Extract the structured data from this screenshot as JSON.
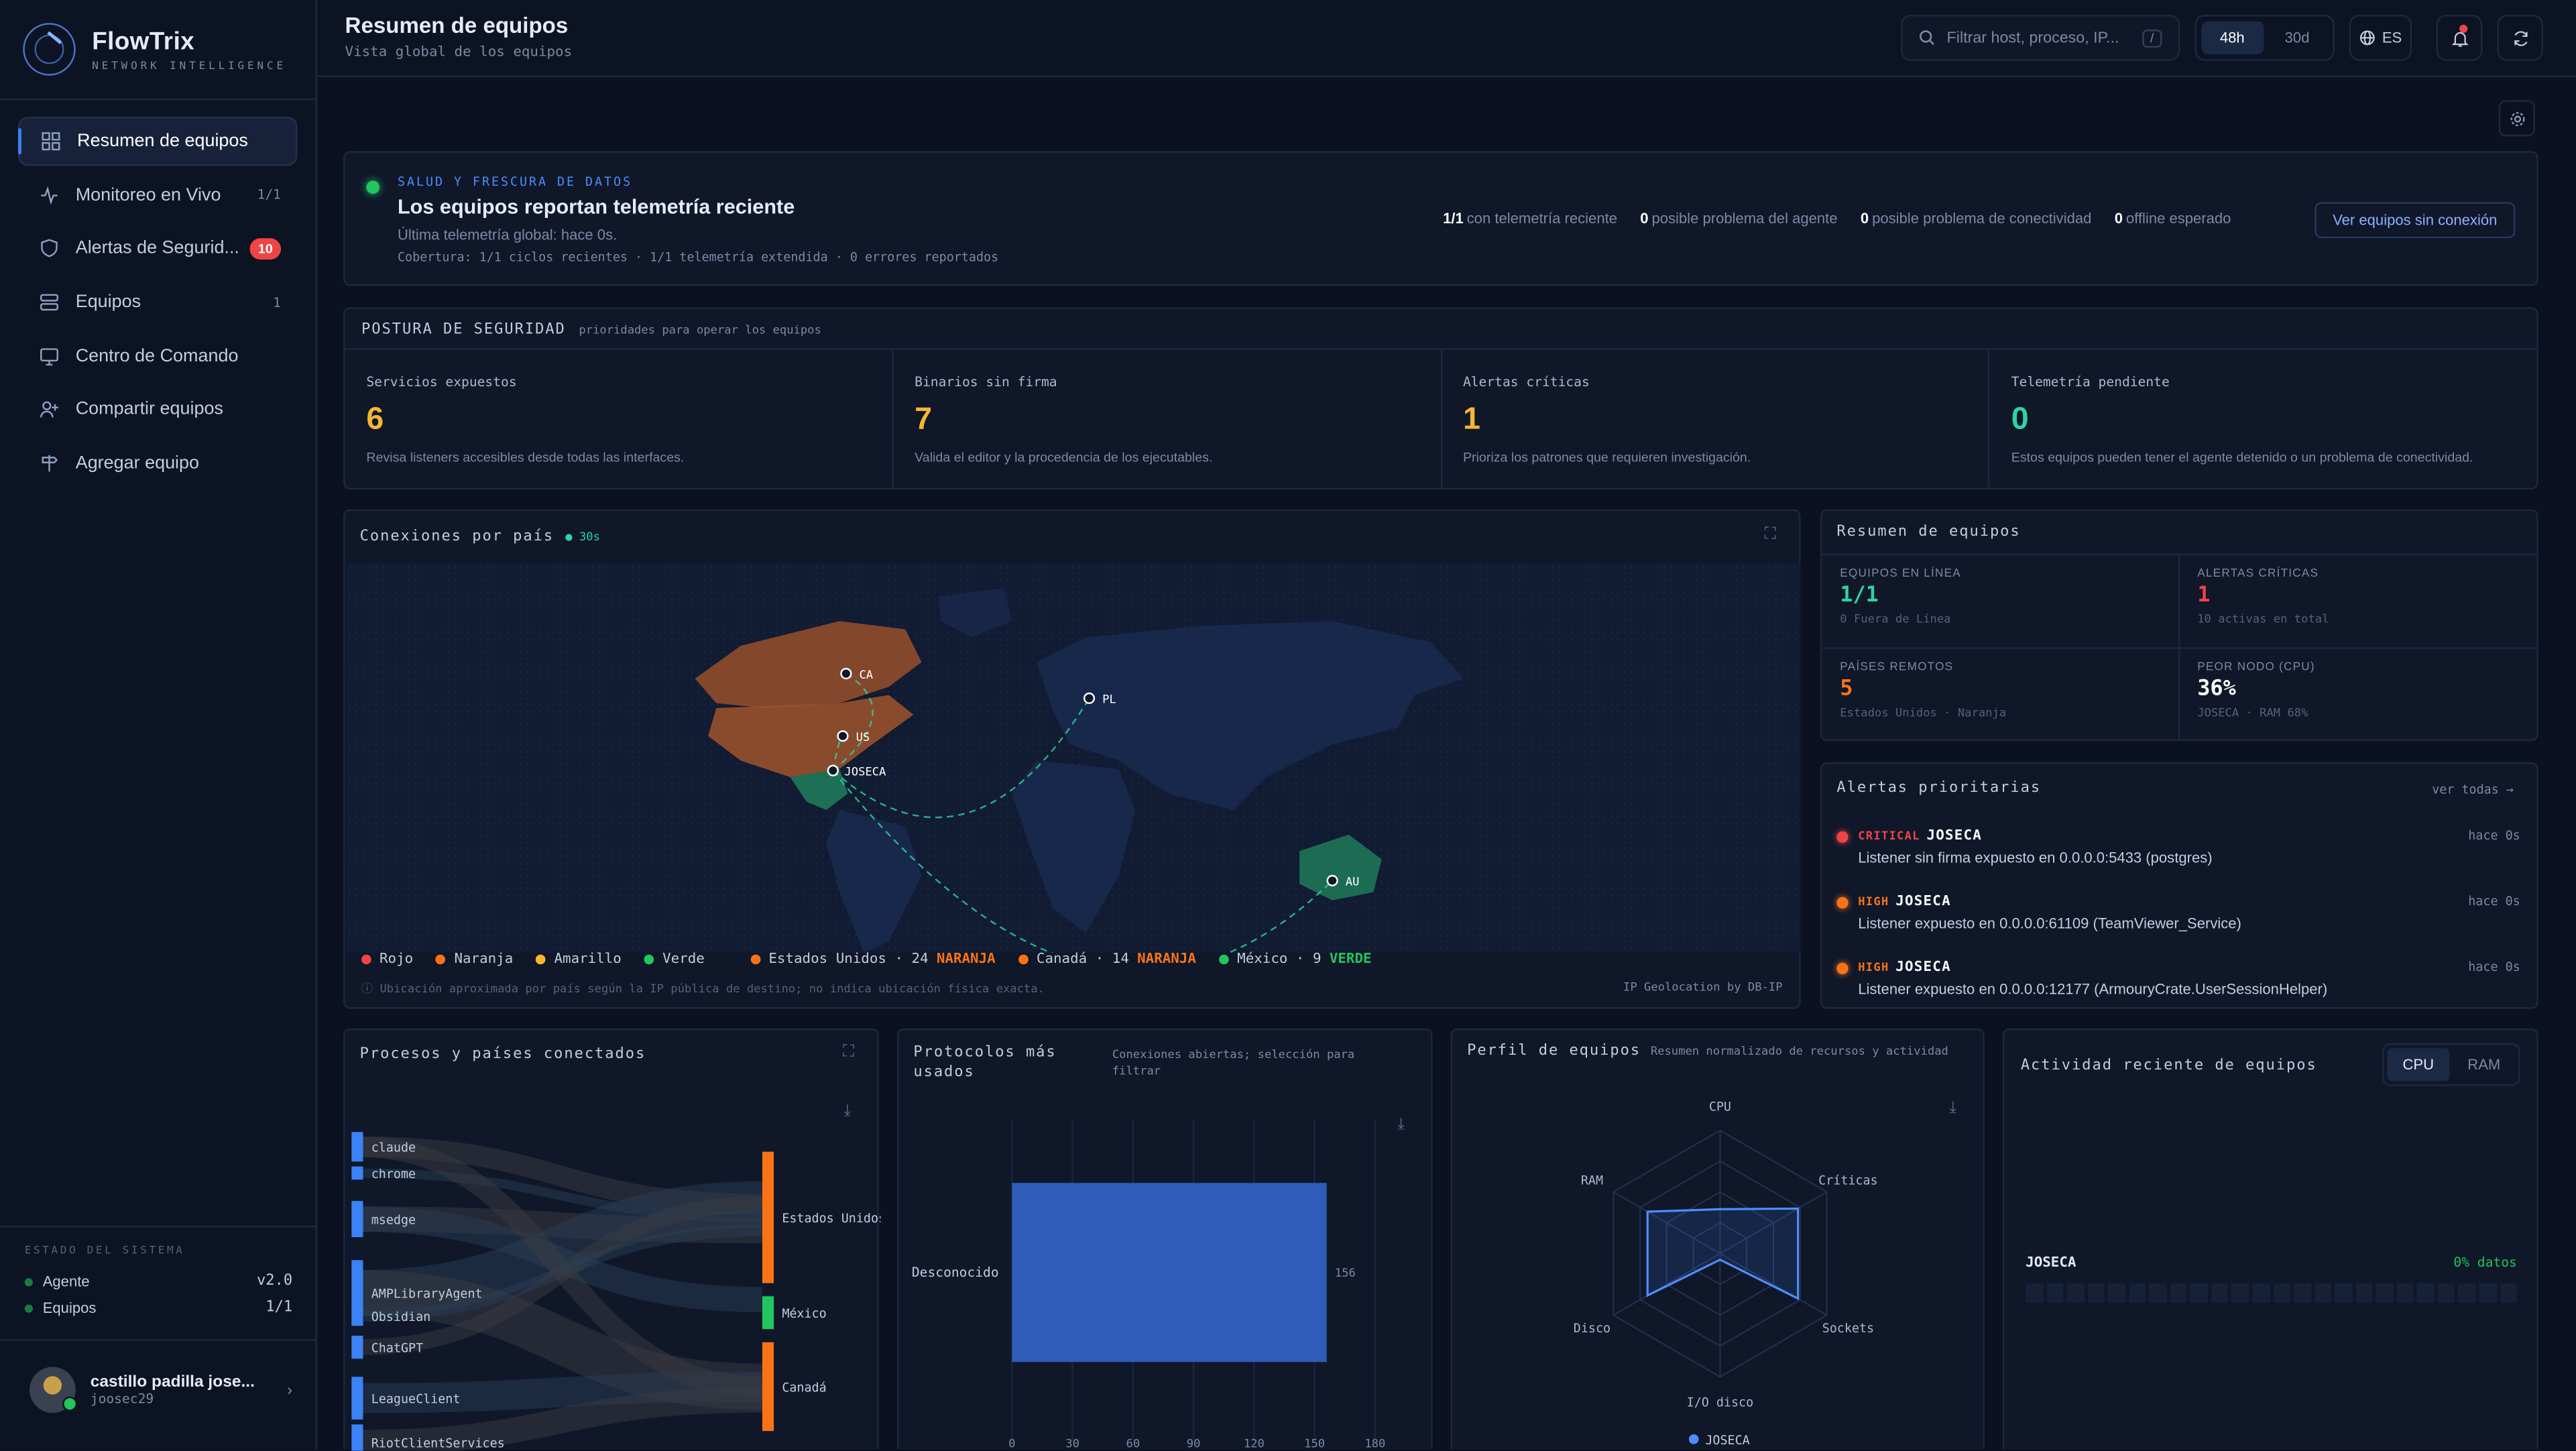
{
  "brand": {
    "name": "FlowTrix",
    "tagline": "NETWORK INTELLIGENCE"
  },
  "nav": [
    {
      "label": "Resumen de equipos",
      "icon": "grid-icon",
      "count": "",
      "active": true
    },
    {
      "label": "Monitoreo en Vivo",
      "icon": "activity-icon",
      "count": "1/1"
    },
    {
      "label": "Alertas de Segurid...",
      "icon": "shield-icon",
      "badge": "10"
    },
    {
      "label": "Equipos",
      "icon": "server-icon",
      "count": "1"
    },
    {
      "label": "Centro de Comando",
      "icon": "monitor-icon",
      "count": ""
    },
    {
      "label": "Compartir equipos",
      "icon": "user-plus-icon",
      "count": ""
    },
    {
      "label": "Agregar equipo",
      "icon": "signpost-icon",
      "count": ""
    }
  ],
  "system": {
    "title": "ESTADO DEL SISTEMA",
    "rows": [
      {
        "label": "Agente",
        "value": "v2.0"
      },
      {
        "label": "Equipos",
        "value": "1/1"
      }
    ]
  },
  "user": {
    "name": "castillo padilla jose...",
    "handle": "joosec29"
  },
  "header": {
    "title": "Resumen de equipos",
    "subtitle": "Vista global de los equipos",
    "search_placeholder": "Filtrar host, proceso, IP...",
    "search_kbd": "/",
    "range": [
      "48h",
      "30d"
    ],
    "range_selected": "48h",
    "lang": "ES"
  },
  "health": {
    "eyebrow": "SALUD Y FRESCURA DE DATOS",
    "title": "Los equipos reportan telemetría reciente",
    "last": "Última telemetría global: hace 0s.",
    "coverage": "Cobertura: 1/1 ciclos recientes · 1/1 telemetría extendida · 0 errores reportados",
    "stats": [
      {
        "v": "1/1",
        "t": "con telemetría reciente"
      },
      {
        "v": "0",
        "t": "posible problema del agente"
      },
      {
        "v": "0",
        "t": "posible problema de conectividad"
      },
      {
        "v": "0",
        "t": "offline esperado"
      }
    ],
    "button": "Ver equipos sin conexión"
  },
  "posture": {
    "title": "POSTURA DE SEGURIDAD",
    "subtitle": "prioridades para operar los equipos",
    "cards": [
      {
        "label": "Servicios expuestos",
        "value": "6",
        "desc": "Revisa listeners accesibles desde todas las interfaces.",
        "color": "#f5b731"
      },
      {
        "label": "Binarios sin firma",
        "value": "7",
        "desc": "Valida el editor y la procedencia de los ejecutables.",
        "color": "#f5b731"
      },
      {
        "label": "Alertas críticas",
        "value": "1",
        "desc": "Prioriza los patrones que requieren investigación.",
        "color": "#f5b731"
      },
      {
        "label": "Telemetría pendiente",
        "value": "0",
        "desc": "Estos equipos pueden tener el agente detenido o un problema de conectividad.",
        "color": "#2dd4a0"
      }
    ]
  },
  "map": {
    "title": "Conexiones por país",
    "refresh": "30s",
    "points": [
      {
        "code": "CA"
      },
      {
        "code": "US"
      },
      {
        "code": "JOSECA"
      },
      {
        "code": "PL"
      },
      {
        "code": "AU"
      }
    ],
    "legend": [
      {
        "label": "Rojo",
        "color": "#ef4444"
      },
      {
        "label": "Naranja",
        "color": "#f97316"
      },
      {
        "label": "Amarillo",
        "color": "#f5b731"
      },
      {
        "label": "Verde",
        "color": "#22c55e"
      }
    ],
    "countries": [
      {
        "name": "Estados Unidos · 24",
        "tag": "NARANJA",
        "color": "#f97316"
      },
      {
        "name": "Canadá · 14",
        "tag": "NARANJA",
        "color": "#f97316"
      },
      {
        "name": "México · 9",
        "tag": "VERDE",
        "color": "#22c55e"
      }
    ],
    "note": "Ubicación aproximada por país según la IP pública de destino; no indica ubicación física exacta.",
    "credit": "IP Geolocation by DB-IP"
  },
  "summary": {
    "title": "Resumen de equipos",
    "cells": [
      {
        "label": "EQUIPOS EN LÍNEA",
        "value": "1/1",
        "sub": "0 Fuera de Línea",
        "color": "#2dd4a0"
      },
      {
        "label": "ALERTAS CRÍTICAS",
        "value": "1",
        "sub": "10 activas en total",
        "color": "#ef4444"
      },
      {
        "label": "PAÍSES REMOTOS",
        "value": "5",
        "sub": "Estados Unidos · Naranja",
        "color": "#f97316"
      },
      {
        "label": "PEOR NODO (CPU)",
        "value": "36%",
        "sub": "JOSECA · RAM 68%",
        "color": "#ffffff"
      }
    ]
  },
  "alerts": {
    "title": "Alertas prioritarias",
    "link": "ver todas →",
    "items": [
      {
        "sev": "CRITICAL",
        "host": "JOSECA",
        "msg": "Listener sin firma expuesto en 0.0.0.0:5433 (postgres)",
        "time": "hace 0s",
        "color": "#ef4444"
      },
      {
        "sev": "HIGH",
        "host": "JOSECA",
        "msg": "Listener expuesto en 0.0.0.0:61109 (TeamViewer_Service)",
        "time": "hace 0s",
        "color": "#f97316"
      },
      {
        "sev": "HIGH",
        "host": "JOSECA",
        "msg": "Listener expuesto en 0.0.0.0:12177 (ArmouryCrate.UserSessionHelper)",
        "time": "hace 0s",
        "color": "#f97316"
      }
    ]
  },
  "sankey": {
    "title": "Procesos y países conectados",
    "processes": [
      "claude",
      "chrome",
      "msedge",
      "AMPLibraryAgent",
      "Obsidian",
      "ChatGPT",
      "LeagueClient",
      "RiotClientServices"
    ],
    "countries": [
      {
        "name": "Estados Unidos",
        "color": "#f97316"
      },
      {
        "name": "México",
        "color": "#22c55e"
      },
      {
        "name": "Canadá",
        "color": "#f97316"
      }
    ]
  },
  "protocols": {
    "title": "Protocolos más usados",
    "subtitle": "Conexiones abiertas; selección para filtrar",
    "chart_data": {
      "type": "bar",
      "orientation": "horizontal",
      "categories": [
        "Desconocido"
      ],
      "values": [
        156
      ],
      "xlim": [
        0,
        180
      ],
      "ticks": [
        0,
        30,
        60,
        90,
        120,
        150,
        180
      ]
    }
  },
  "profile": {
    "title": "Perfil de equipos",
    "subtitle": "Resumen normalizado de recursos y actividad",
    "chart_data": {
      "type": "radar",
      "axes": [
        "CPU",
        "Críticas",
        "Sockets",
        "I/O disco",
        "Disco",
        "RAM"
      ],
      "series": [
        {
          "name": "JOSECA",
          "values": [
            0.36,
            0.73,
            0.73,
            0.05,
            0.68,
            0.68
          ]
        }
      ]
    }
  },
  "activity": {
    "title": "Actividad reciente de equipos",
    "tabs": [
      "CPU",
      "RAM"
    ],
    "selected": "CPU",
    "host": "JOSECA",
    "pct": "0% datos",
    "cells": 24
  }
}
